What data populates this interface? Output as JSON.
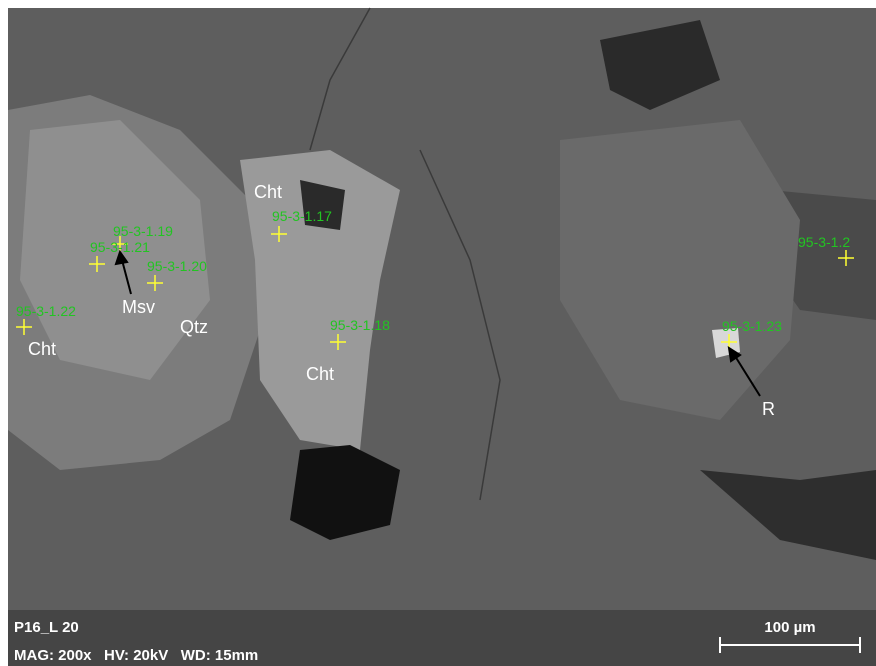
{
  "spots": [
    "95-3-1.19",
    "95-3-1.21",
    "95-3-1.20",
    "95-3-1.22",
    "95-3-1.17",
    "95-3-1.18",
    "95-3-1.23",
    "95-3-1.2"
  ],
  "minerals": [
    "Cht",
    "Msv",
    "Qtz",
    "Cht",
    "Cht",
    "R"
  ],
  "footer": {
    "sample": "P16_L 20",
    "settings": "MAG: 200x   HV: 20kV   WD: 15mm",
    "scale": "100 µm"
  }
}
